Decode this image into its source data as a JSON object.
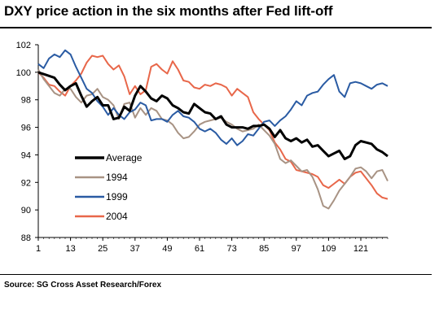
{
  "title": "DXY price action in the six months after Fed lift-off",
  "source": "Source: SG Cross Asset Research/Forex",
  "chart_data": {
    "type": "line",
    "xlim": [
      1,
      131
    ],
    "ylim": [
      88,
      102
    ],
    "x_ticks": [
      1,
      13,
      25,
      37,
      49,
      61,
      73,
      85,
      97,
      109,
      121
    ],
    "y_ticks": [
      88,
      90,
      92,
      94,
      96,
      98,
      100,
      102
    ],
    "grid": false,
    "legend_position": "middle-left",
    "series": [
      {
        "name": "Average",
        "color": "#000000",
        "width": 3,
        "points": [
          [
            1,
            100
          ],
          [
            4,
            99.8
          ],
          [
            7,
            99.6
          ],
          [
            9,
            99.1
          ],
          [
            11,
            98.7
          ],
          [
            13,
            99
          ],
          [
            15,
            99.2
          ],
          [
            17,
            98.3
          ],
          [
            19,
            97.5
          ],
          [
            21,
            97.9
          ],
          [
            23,
            98.2
          ],
          [
            25,
            97.6
          ],
          [
            27,
            97.6
          ],
          [
            29,
            96.6
          ],
          [
            31,
            96.7
          ],
          [
            33,
            97.5
          ],
          [
            35,
            97.2
          ],
          [
            37,
            98.3
          ],
          [
            39,
            99
          ],
          [
            41,
            98.6
          ],
          [
            43,
            98.1
          ],
          [
            45,
            97.9
          ],
          [
            47,
            98.3
          ],
          [
            49,
            98.1
          ],
          [
            51,
            97.6
          ],
          [
            53,
            97.4
          ],
          [
            55,
            97.1
          ],
          [
            57,
            97
          ],
          [
            59,
            97.7
          ],
          [
            61,
            97.4
          ],
          [
            63,
            97.1
          ],
          [
            65,
            97
          ],
          [
            67,
            96.6
          ],
          [
            69,
            96.8
          ],
          [
            71,
            96.2
          ],
          [
            73,
            96
          ],
          [
            75,
            96
          ],
          [
            77,
            96
          ],
          [
            79,
            95.9
          ],
          [
            81,
            96.1
          ],
          [
            83,
            96.1
          ],
          [
            85,
            96.2
          ],
          [
            87,
            95.9
          ],
          [
            89,
            95.3
          ],
          [
            91,
            95.8
          ],
          [
            93,
            95.2
          ],
          [
            95,
            95
          ],
          [
            97,
            95.2
          ],
          [
            99,
            94.9
          ],
          [
            101,
            95.1
          ],
          [
            103,
            94.6
          ],
          [
            105,
            94.7
          ],
          [
            107,
            94.3
          ],
          [
            109,
            93.9
          ],
          [
            111,
            94.1
          ],
          [
            113,
            94.3
          ],
          [
            115,
            93.7
          ],
          [
            117,
            93.9
          ],
          [
            119,
            94.7
          ],
          [
            121,
            95
          ],
          [
            123,
            94.9
          ],
          [
            125,
            94.8
          ],
          [
            127,
            94.4
          ],
          [
            129,
            94.2
          ],
          [
            131,
            93.9
          ]
        ]
      },
      {
        "name": "1994",
        "color": "#a89384",
        "width": 2,
        "points": [
          [
            1,
            100.2
          ],
          [
            3,
            99.5
          ],
          [
            5,
            99
          ],
          [
            7,
            98.5
          ],
          [
            9,
            98.3
          ],
          [
            11,
            98.8
          ],
          [
            13,
            98.8
          ],
          [
            15,
            98.2
          ],
          [
            17,
            97.8
          ],
          [
            19,
            98.3
          ],
          [
            21,
            98.4
          ],
          [
            23,
            98.8
          ],
          [
            25,
            98.2
          ],
          [
            27,
            98
          ],
          [
            29,
            97.6
          ],
          [
            31,
            96.6
          ],
          [
            33,
            97.7
          ],
          [
            35,
            97.8
          ],
          [
            37,
            96.7
          ],
          [
            39,
            97.4
          ],
          [
            41,
            96.9
          ],
          [
            43,
            97.4
          ],
          [
            45,
            97.2
          ],
          [
            47,
            96.6
          ],
          [
            49,
            96.5
          ],
          [
            51,
            96.2
          ],
          [
            53,
            95.6
          ],
          [
            55,
            95.2
          ],
          [
            57,
            95.3
          ],
          [
            59,
            95.7
          ],
          [
            61,
            96.2
          ],
          [
            63,
            96.4
          ],
          [
            65,
            96.5
          ],
          [
            67,
            96.6
          ],
          [
            69,
            96.7
          ],
          [
            71,
            96.4
          ],
          [
            73,
            96.2
          ],
          [
            75,
            95.9
          ],
          [
            77,
            95.7
          ],
          [
            79,
            95.8
          ],
          [
            81,
            95.9
          ],
          [
            83,
            96.2
          ],
          [
            85,
            95.8
          ],
          [
            87,
            95.4
          ],
          [
            89,
            94.8
          ],
          [
            91,
            93.7
          ],
          [
            93,
            93.4
          ],
          [
            95,
            93.6
          ],
          [
            97,
            93.2
          ],
          [
            99,
            92.8
          ],
          [
            101,
            92.9
          ],
          [
            103,
            92.4
          ],
          [
            105,
            91.5
          ],
          [
            107,
            90.3
          ],
          [
            109,
            90.1
          ],
          [
            111,
            90.7
          ],
          [
            113,
            91.4
          ],
          [
            115,
            91.9
          ],
          [
            117,
            92.4
          ],
          [
            119,
            93
          ],
          [
            121,
            93.1
          ],
          [
            123,
            92.8
          ],
          [
            125,
            92.3
          ],
          [
            127,
            92.8
          ],
          [
            129,
            92.9
          ],
          [
            131,
            92.1
          ]
        ]
      },
      {
        "name": "1999",
        "color": "#2a5ba3",
        "width": 2,
        "points": [
          [
            1,
            100.6
          ],
          [
            3,
            100.3
          ],
          [
            5,
            101
          ],
          [
            7,
            101.3
          ],
          [
            9,
            101.1
          ],
          [
            11,
            101.6
          ],
          [
            13,
            101.3
          ],
          [
            15,
            100.4
          ],
          [
            17,
            99.6
          ],
          [
            19,
            98.8
          ],
          [
            21,
            98.5
          ],
          [
            23,
            97.9
          ],
          [
            25,
            97.5
          ],
          [
            27,
            96.9
          ],
          [
            29,
            97.4
          ],
          [
            31,
            96.9
          ],
          [
            33,
            96.6
          ],
          [
            35,
            97.1
          ],
          [
            37,
            97.3
          ],
          [
            39,
            97.8
          ],
          [
            41,
            97.6
          ],
          [
            43,
            96.5
          ],
          [
            45,
            96.6
          ],
          [
            47,
            96.6
          ],
          [
            49,
            96.4
          ],
          [
            51,
            96.9
          ],
          [
            53,
            97.2
          ],
          [
            55,
            96.8
          ],
          [
            57,
            96.7
          ],
          [
            59,
            96.4
          ],
          [
            61,
            95.9
          ],
          [
            63,
            95.7
          ],
          [
            65,
            95.9
          ],
          [
            67,
            95.6
          ],
          [
            69,
            95.1
          ],
          [
            71,
            94.8
          ],
          [
            73,
            95.2
          ],
          [
            75,
            94.7
          ],
          [
            77,
            95
          ],
          [
            79,
            95.5
          ],
          [
            81,
            95.4
          ],
          [
            83,
            95.9
          ],
          [
            85,
            96.4
          ],
          [
            87,
            96.5
          ],
          [
            89,
            96.1
          ],
          [
            91,
            96.5
          ],
          [
            93,
            96.8
          ],
          [
            95,
            97.3
          ],
          [
            97,
            97.9
          ],
          [
            99,
            97.6
          ],
          [
            101,
            98.3
          ],
          [
            103,
            98.5
          ],
          [
            105,
            98.6
          ],
          [
            107,
            99.1
          ],
          [
            109,
            99.5
          ],
          [
            111,
            99.8
          ],
          [
            113,
            98.6
          ],
          [
            115,
            98.2
          ],
          [
            117,
            99.2
          ],
          [
            119,
            99.3
          ],
          [
            121,
            99.2
          ],
          [
            123,
            99
          ],
          [
            125,
            98.8
          ],
          [
            127,
            99.1
          ],
          [
            129,
            99.2
          ],
          [
            131,
            99
          ]
        ]
      },
      {
        "name": "2004",
        "color": "#e8674a",
        "width": 2,
        "points": [
          [
            1,
            100
          ],
          [
            3,
            99.6
          ],
          [
            5,
            99.1
          ],
          [
            7,
            99
          ],
          [
            9,
            98.6
          ],
          [
            11,
            98.3
          ],
          [
            13,
            99
          ],
          [
            15,
            99.4
          ],
          [
            17,
            99.9
          ],
          [
            19,
            100.7
          ],
          [
            21,
            101.2
          ],
          [
            23,
            101.1
          ],
          [
            25,
            101.2
          ],
          [
            27,
            100.6
          ],
          [
            29,
            100.2
          ],
          [
            31,
            100.5
          ],
          [
            33,
            99.7
          ],
          [
            35,
            98.4
          ],
          [
            37,
            99
          ],
          [
            39,
            98.4
          ],
          [
            41,
            98.7
          ],
          [
            43,
            100.4
          ],
          [
            45,
            100.6
          ],
          [
            47,
            100.2
          ],
          [
            49,
            99.9
          ],
          [
            51,
            100.8
          ],
          [
            53,
            100.2
          ],
          [
            55,
            99.4
          ],
          [
            57,
            99.3
          ],
          [
            59,
            98.9
          ],
          [
            61,
            98.8
          ],
          [
            63,
            99.1
          ],
          [
            65,
            99
          ],
          [
            67,
            99.2
          ],
          [
            69,
            99.1
          ],
          [
            71,
            98.9
          ],
          [
            73,
            98.3
          ],
          [
            75,
            98.8
          ],
          [
            77,
            98.5
          ],
          [
            79,
            98.2
          ],
          [
            81,
            97.1
          ],
          [
            83,
            96.6
          ],
          [
            85,
            96.2
          ],
          [
            87,
            95.8
          ],
          [
            89,
            94.9
          ],
          [
            91,
            94.4
          ],
          [
            93,
            93.7
          ],
          [
            95,
            93.5
          ],
          [
            97,
            92.9
          ],
          [
            99,
            92.8
          ],
          [
            101,
            92.7
          ],
          [
            103,
            92.6
          ],
          [
            105,
            92.4
          ],
          [
            107,
            91.8
          ],
          [
            109,
            91.6
          ],
          [
            111,
            91.9
          ],
          [
            113,
            92.2
          ],
          [
            115,
            91.9
          ],
          [
            117,
            92.4
          ],
          [
            119,
            92.7
          ],
          [
            121,
            92.8
          ],
          [
            123,
            92.3
          ],
          [
            125,
            91.8
          ],
          [
            127,
            91.2
          ],
          [
            129,
            90.9
          ],
          [
            131,
            90.8
          ]
        ]
      }
    ]
  }
}
